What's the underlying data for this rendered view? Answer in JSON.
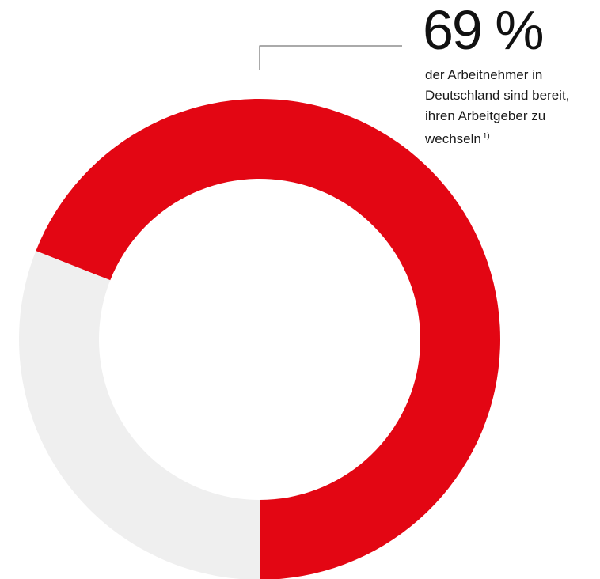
{
  "chart_data": {
    "type": "pie",
    "variant": "donut",
    "slices": [
      {
        "label": "bereit zu wechseln",
        "value": 69,
        "color": "#e30613"
      },
      {
        "label": "",
        "value": 31,
        "color": "#efefef"
      }
    ],
    "callout": {
      "value_text": "69 %",
      "caption_lines": [
        "der Arbeitnehmer in",
        "Deutschland sind bereit,",
        "ihren Arbeitgeber zu",
        "wechseln"
      ],
      "footnote": "1)"
    }
  },
  "colors": {
    "accent": "#e30613",
    "rest": "#efefef",
    "leader_line": "#555555"
  }
}
